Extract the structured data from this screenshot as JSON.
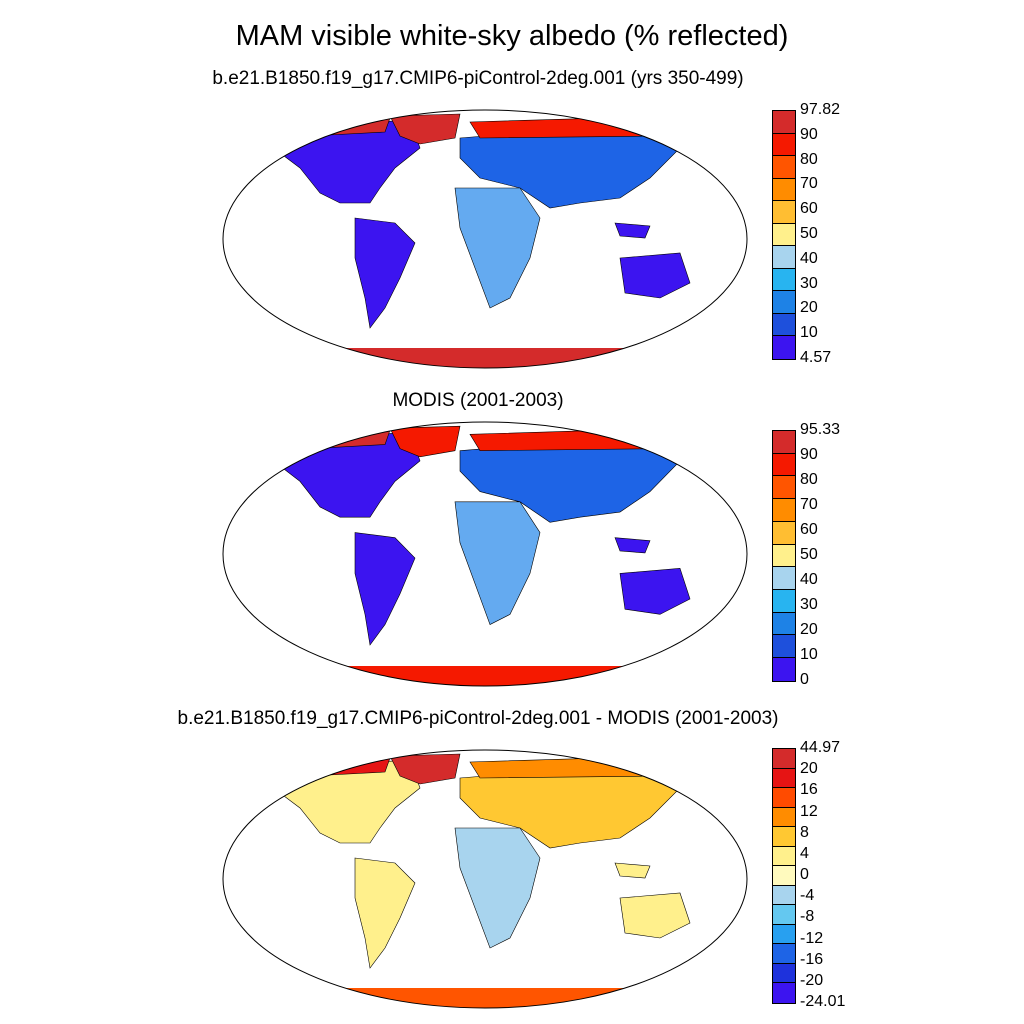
{
  "title": "MAM visible white-sky albedo (% reflected)",
  "panels": [
    {
      "subtitle": "b.e21.B1850.f19_g17.CMIP6-piControl-2deg.001 (yrs 350-499)",
      "colorbar": {
        "labels": [
          "97.82",
          "90",
          "80",
          "70",
          "60",
          "50",
          "40",
          "30",
          "20",
          "10",
          "4.57"
        ],
        "colors": [
          "#d42b2b",
          "#f51900",
          "#ff5500",
          "#ff8c00",
          "#ffbe32",
          "#fff08c",
          "#a8d4ee",
          "#28b4f0",
          "#1e82e6",
          "#1e50dc",
          "#3c14f0"
        ]
      }
    },
    {
      "subtitle": "MODIS (2001-2003)",
      "colorbar": {
        "labels": [
          "95.33",
          "90",
          "80",
          "70",
          "60",
          "50",
          "40",
          "30",
          "20",
          "10",
          "0"
        ],
        "colors": [
          "#d42b2b",
          "#f51900",
          "#ff5500",
          "#ff8c00",
          "#ffbe32",
          "#fff08c",
          "#a8d4ee",
          "#28b4f0",
          "#1e82e6",
          "#1e50dc",
          "#3c14f0"
        ]
      }
    },
    {
      "subtitle": "b.e21.B1850.f19_g17.CMIP6-piControl-2deg.001 - MODIS (2001-2003)",
      "colorbar": {
        "labels": [
          "44.97",
          "20",
          "16",
          "12",
          "8",
          "4",
          "0",
          "-4",
          "-8",
          "-12",
          "-16",
          "-20",
          "-24.01"
        ],
        "colors": [
          "#d42b2b",
          "#e61414",
          "#ff4b00",
          "#ff8c00",
          "#ffc832",
          "#fff08c",
          "#fffabe",
          "#a8d4ee",
          "#64c8f0",
          "#28a0f0",
          "#1e64e6",
          "#1e32dc",
          "#3c14f0"
        ]
      }
    }
  ],
  "colors": {
    "ice": "#d42b2b",
    "snow_edge": "#ff8c00",
    "land_low": "#3c14f0",
    "land_mid": "#1e64e6",
    "desert": "#64aaf0",
    "diff_land": "#fff08c"
  }
}
